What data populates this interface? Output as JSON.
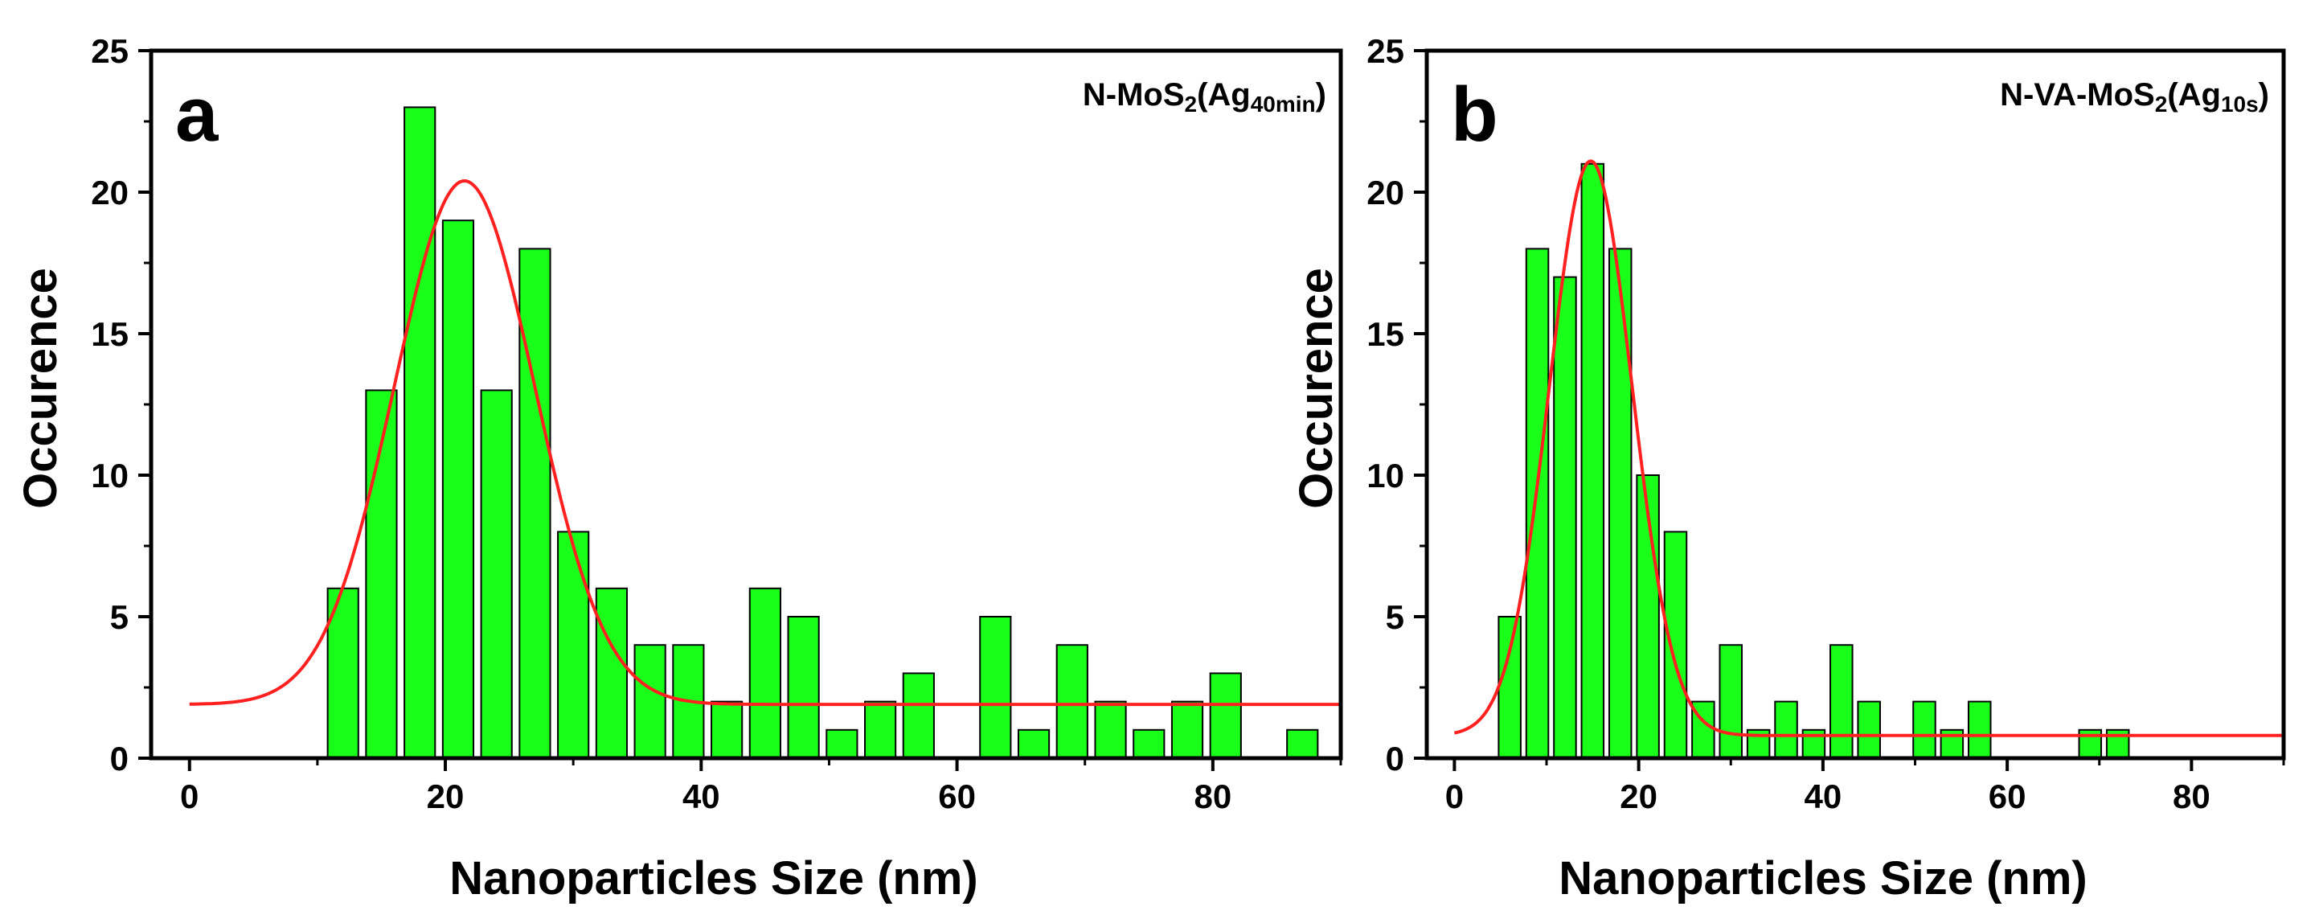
{
  "chart_data": [
    {
      "type": "bar",
      "panel_label": "a",
      "sample_label": {
        "main": "N-MoS",
        "sub1": "2",
        "mid": "(Ag",
        "sub2": "40min",
        "end": ")"
      },
      "xlabel": "Nanoparticles Size (nm)",
      "ylabel": "Occurence",
      "xlim": [
        -3,
        90
      ],
      "ylim": [
        0,
        25
      ],
      "xticks": [
        0,
        20,
        40,
        60,
        80
      ],
      "yticks": [
        0,
        5,
        10,
        15,
        20,
        25
      ],
      "bin_width": 3,
      "bin_centers": [
        12,
        15,
        18,
        21,
        24,
        27,
        30,
        33,
        36,
        39,
        42,
        45,
        48,
        51,
        54,
        57,
        60,
        63,
        66,
        69,
        72,
        75,
        78,
        81,
        84,
        87
      ],
      "counts": [
        6,
        13,
        23,
        19,
        13,
        18,
        8,
        6,
        4,
        4,
        2,
        6,
        5,
        1,
        2,
        3,
        0,
        5,
        1,
        4,
        2,
        1,
        2,
        3,
        0,
        1
      ],
      "fit": {
        "type": "gaussian",
        "baseline": 1.9,
        "amplitude": 18.5,
        "center": 21.5,
        "sigma": 5.5,
        "x_range": [
          0,
          90
        ]
      },
      "colors": {
        "bar_fill": "#19ff19",
        "bar_edge": "#000000",
        "fit_line": "#ff2020"
      }
    },
    {
      "type": "bar",
      "panel_label": "b",
      "sample_label": {
        "main": "N-VA-MoS",
        "sub1": "2",
        "mid": "(Ag",
        "sub2": "10s",
        "end": ")"
      },
      "xlabel": "Nanoparticles Size (nm)",
      "ylabel": "Occurence",
      "xlim": [
        -3,
        90
      ],
      "ylim": [
        0,
        25
      ],
      "xticks": [
        0,
        20,
        40,
        60,
        80
      ],
      "yticks": [
        0,
        5,
        10,
        15,
        20,
        25
      ],
      "bin_width": 3,
      "bin_centers": [
        6,
        9,
        12,
        15,
        18,
        21,
        24,
        27,
        30,
        33,
        36,
        39,
        42,
        45,
        48,
        51,
        54,
        57,
        60,
        63,
        66,
        69,
        72
      ],
      "counts": [
        5,
        18,
        17,
        21,
        18,
        10,
        8,
        2,
        4,
        1,
        2,
        1,
        4,
        2,
        0,
        2,
        1,
        2,
        0,
        0,
        0,
        1,
        1
      ],
      "fit": {
        "type": "gaussian",
        "baseline": 0.8,
        "amplitude": 20.3,
        "center": 14.8,
        "sigma": 4.5,
        "x_range": [
          0,
          90
        ]
      },
      "colors": {
        "bar_fill": "#19ff19",
        "bar_edge": "#000000",
        "fit_line": "#ff2020"
      }
    }
  ]
}
